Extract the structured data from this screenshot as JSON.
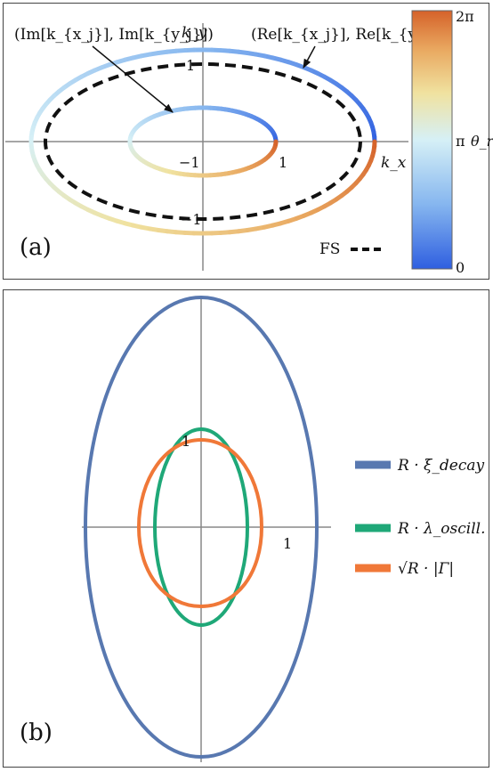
{
  "panel_a": {
    "label": "(a)",
    "axis": {
      "x_label": "k_x",
      "y_label": "k_y"
    },
    "ticks": {
      "x_neg": "−1",
      "x_pos": "1",
      "y_pos": "1",
      "y_neg": "−1"
    },
    "annotation_im": "(Im[k_{x_j}], Im[k_{y_j}])",
    "annotation_re": "(Re[k_{x_j}], Re[k_{y_j}])",
    "fs_legend": "FS",
    "colorbar": {
      "top": "2π",
      "mid": "π",
      "bottom": "0",
      "symbol": "θ_r"
    }
  },
  "panel_b": {
    "label": "(b)",
    "ticks": {
      "y_pos": "1",
      "x_pos": "1"
    },
    "legend": [
      {
        "label": "R · ξ_decay",
        "color": "#5878b0"
      },
      {
        "label": "R · λ_oscill.",
        "color": "#1fa878"
      },
      {
        "label": "√R · |Γ|",
        "color": "#f07838"
      }
    ]
  },
  "colors": {
    "blue_curve": "#5878b0",
    "green_curve": "#1fa878",
    "orange_curve": "#f07838",
    "colormap": [
      "#2f5fe0",
      "#86b6ef",
      "#d6f0f6",
      "#f0e2a0",
      "#e9a860",
      "#d5622a"
    ]
  }
}
